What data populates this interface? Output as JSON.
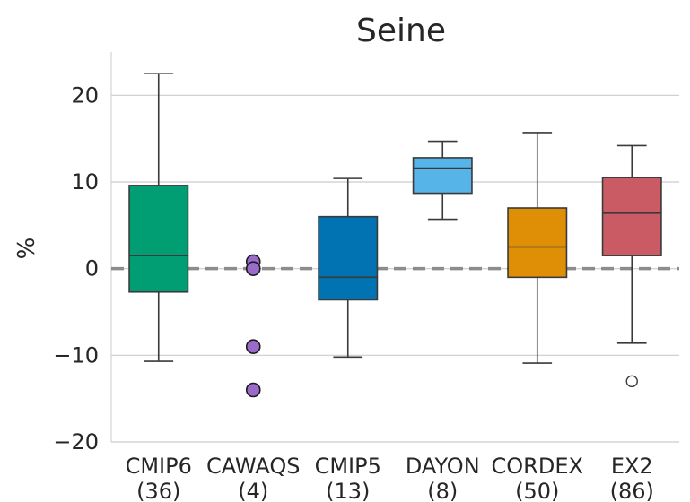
{
  "chart_data": {
    "type": "box",
    "title": "Seine",
    "xlabel": "",
    "ylabel": "%",
    "ylim": [
      -20,
      25
    ],
    "yticks": [
      -20,
      -10,
      0,
      10,
      20
    ],
    "ytick_labels": [
      "−20",
      "−10",
      "0",
      "10",
      "20"
    ],
    "grid": true,
    "reference_line": 0,
    "categories": [
      {
        "label": "CMIP6",
        "count": "(36)"
      },
      {
        "label": "CAWAQS",
        "count": "(4)"
      },
      {
        "label": "CMIP5",
        "count": "(13)"
      },
      {
        "label": "DAYON",
        "count": "(8)"
      },
      {
        "label": "CORDEX",
        "count": "(50)"
      },
      {
        "label": "EX2",
        "count": "(86)"
      }
    ],
    "boxes": [
      {
        "category": "CMIP6",
        "color": "#029e73",
        "whisker_low": -10.7,
        "q1": -2.7,
        "median": 1.5,
        "q3": 9.6,
        "whisker_high": 22.5,
        "outliers": []
      },
      {
        "category": "CAWAQS",
        "color": "#cc78bc",
        "points": [
          0.8,
          0.0,
          -9.0,
          -14.0
        ]
      },
      {
        "category": "CMIP5",
        "color": "#0173b2",
        "whisker_low": -10.2,
        "q1": -3.6,
        "median": -1.0,
        "q3": 6.0,
        "whisker_high": 10.4,
        "outliers": []
      },
      {
        "category": "DAYON",
        "color": "#56b4e9",
        "whisker_low": 5.7,
        "q1": 8.7,
        "median": 11.6,
        "q3": 12.8,
        "whisker_high": 14.7,
        "outliers": []
      },
      {
        "category": "CORDEX",
        "color": "#de8f05",
        "whisker_low": -10.9,
        "q1": -1.0,
        "median": 2.5,
        "q3": 7.0,
        "whisker_high": 15.7,
        "outliers": []
      },
      {
        "category": "EX2",
        "color": "#ca5a64",
        "whisker_low": -8.6,
        "q1": 1.5,
        "median": 6.4,
        "q3": 10.5,
        "whisker_high": 14.2,
        "outliers": [
          -13.0
        ]
      }
    ],
    "colors": {
      "line": "#3a3a3a",
      "grid": "#cccccc",
      "reference": "#8c8c8c",
      "frame": "#d4d4d4",
      "dot_fill": "#9b6bcc"
    }
  }
}
